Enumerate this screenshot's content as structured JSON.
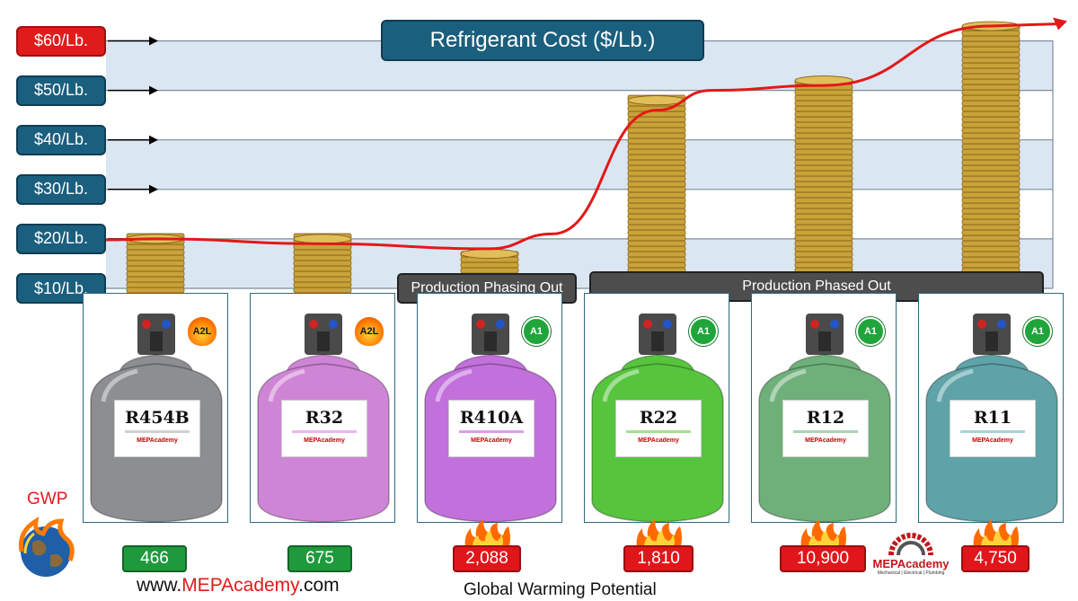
{
  "chart_data": {
    "type": "line",
    "title": "Refrigerant Cost ($/Lb.)",
    "y_ticks": [
      "$10/Lb.",
      "$20/Lb.",
      "$30/Lb.",
      "$40/Lb.",
      "$50/Lb.",
      "$60/Lb."
    ],
    "ylim": [
      10,
      60
    ],
    "grid": true,
    "categories": [
      "R454B",
      "R32",
      "R410A",
      "R22",
      "R12",
      "R11"
    ],
    "values": [
      20,
      19,
      18,
      46,
      51,
      63
    ],
    "series": [
      {
        "name": "",
        "values": [
          20,
          19,
          18,
          46,
          51,
          63
        ],
        "color": "#e31818"
      }
    ],
    "coin_stack_top_values": [
      20,
      20,
      17,
      48,
      52,
      63
    ],
    "safety_class": [
      "A2L",
      "A2L",
      "A1",
      "A1",
      "A1",
      "A1"
    ],
    "gwp_label": "GWP",
    "gwp": [
      "466",
      "675",
      "2,088",
      "1,810",
      "10,900",
      "4,750"
    ],
    "gwp_level": [
      "low",
      "low",
      "high",
      "high",
      "high",
      "high"
    ],
    "cylinder_colors": [
      "#8d8e92",
      "#cf85d6",
      "#c270dc",
      "#57c43e",
      "#6fb07a",
      "#5ea3a7"
    ],
    "stripe_colors": [
      "#cfcfcf",
      "#e9b8ee",
      "#d9a0ea",
      "#a4e08f",
      "#a9d3b1",
      "#a8d3d4"
    ],
    "banners": {
      "phasing_out": "Production Phasing Out",
      "phased_out": "Production Phased Out"
    },
    "cylinder_brand": "MEPAcademy",
    "website_prefix": "www.",
    "website_brand": "MEPAcademy",
    "website_suffix": ".com",
    "footer": "Global Warming Potential",
    "logo_title": "MEPAcademy",
    "logo_subtitle": "Mechanical | Electrical | Plumbing",
    "colors": {
      "axis_label": "#1b5f7e",
      "axis_label_top": "#e01b1b",
      "band": "#dbe6f3",
      "line": "#e31818",
      "coin": "#c9a23a"
    }
  }
}
